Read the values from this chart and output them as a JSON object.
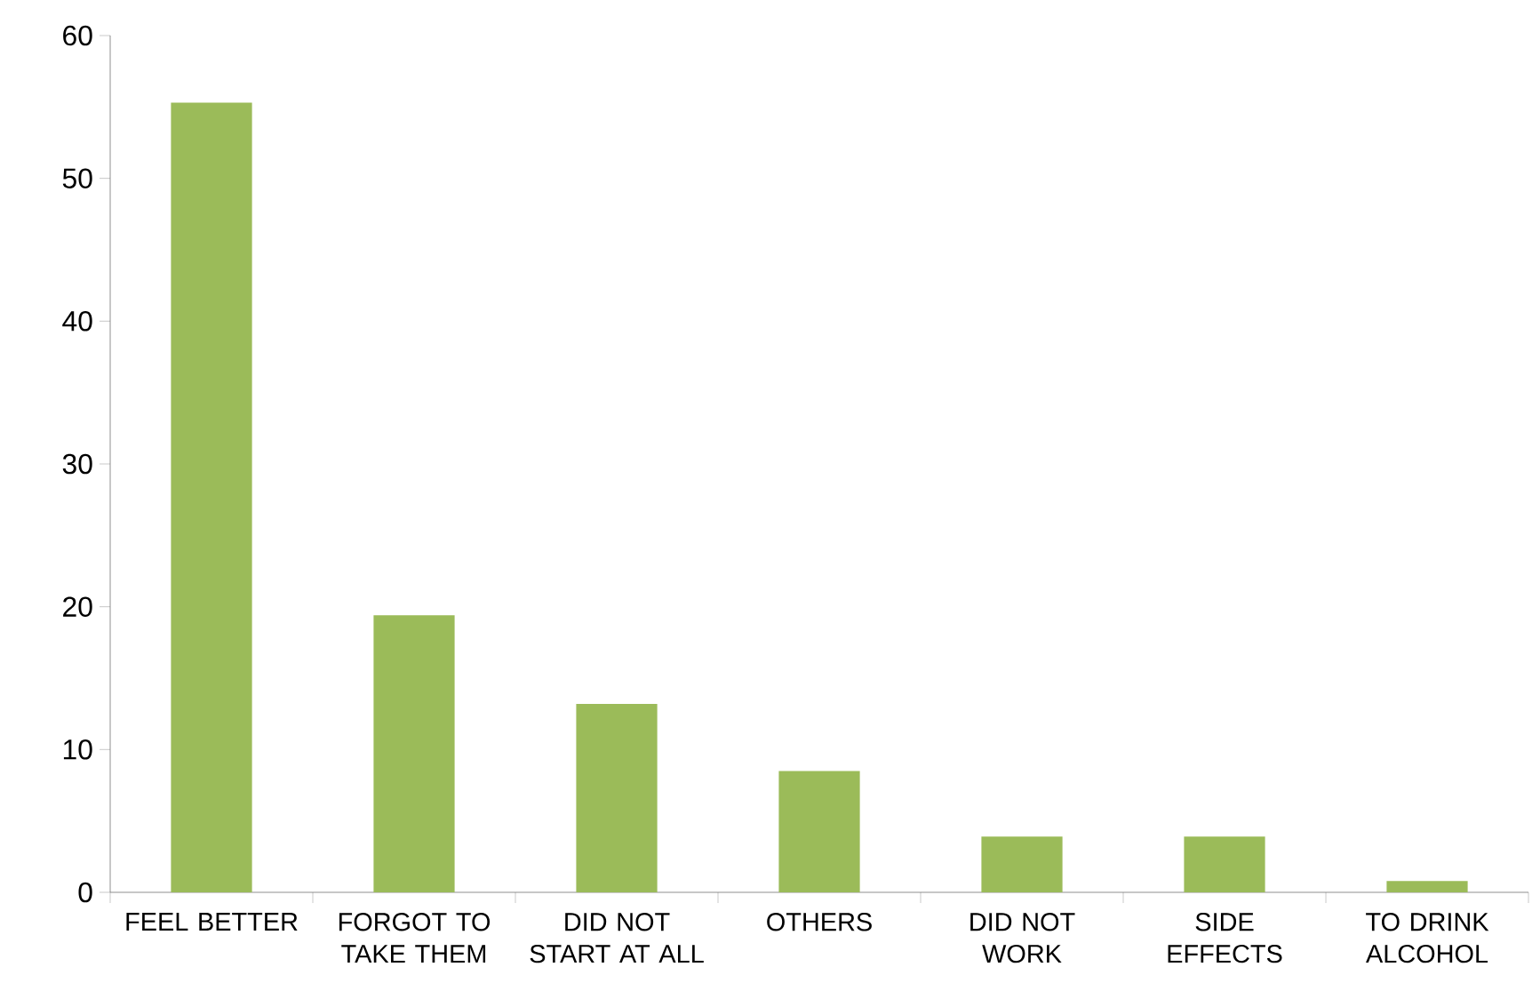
{
  "chart_data": {
    "type": "bar",
    "categories": [
      "FEEL BETTER",
      "FORGOT TO TAKE THEM",
      "DID NOT START AT ALL",
      "OTHERS",
      "DID NOT WORK",
      "SIDE EFFECTS",
      "TO DRINK ALCOHOL"
    ],
    "values": [
      55.3,
      19.4,
      13.2,
      8.5,
      3.9,
      3.9,
      0.8
    ],
    "color": "#9bbb59",
    "ylim": [
      0,
      60
    ],
    "yticks": [
      0,
      10,
      20,
      30,
      40,
      50,
      60
    ]
  }
}
